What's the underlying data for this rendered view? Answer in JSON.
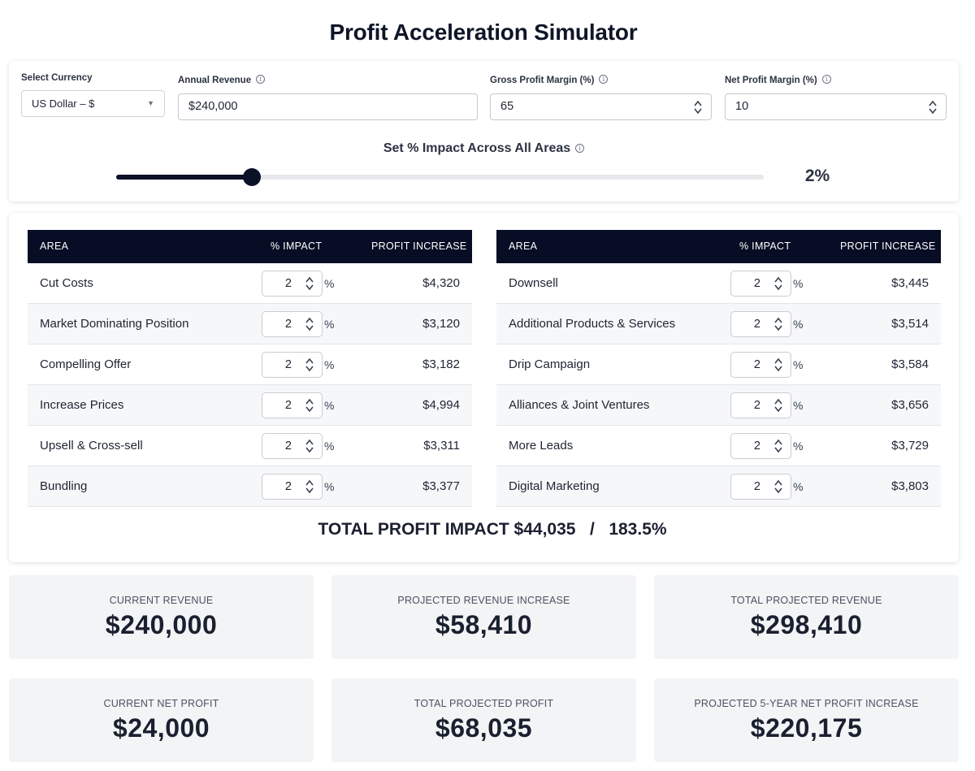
{
  "title": "Profit Acceleration Simulator",
  "settings": {
    "currency": {
      "label": "Select Currency",
      "value": "US Dollar – $"
    },
    "annual_revenue": {
      "label": "Annual Revenue",
      "value": "$240,000"
    },
    "gross_margin": {
      "label": "Gross Profit Margin (%)",
      "value": "65"
    },
    "net_margin": {
      "label": "Net Profit Margin (%)",
      "value": "10"
    },
    "impact": {
      "label": "Set % Impact Across All Areas",
      "value_label": "2%",
      "slider_fraction": 0.21
    }
  },
  "table_headers": {
    "area": "AREA",
    "impact": "% IMPACT",
    "profit": "PROFIT INCREASE"
  },
  "percent_sign": "%",
  "left_rows": [
    {
      "name": "Cut Costs",
      "impact": "2",
      "profit": "$4,320"
    },
    {
      "name": "Market Dominating Position",
      "impact": "2",
      "profit": "$3,120"
    },
    {
      "name": "Compelling Offer",
      "impact": "2",
      "profit": "$3,182"
    },
    {
      "name": "Increase Prices",
      "impact": "2",
      "profit": "$4,994"
    },
    {
      "name": "Upsell & Cross-sell",
      "impact": "2",
      "profit": "$3,311"
    },
    {
      "name": "Bundling",
      "impact": "2",
      "profit": "$3,377"
    }
  ],
  "right_rows": [
    {
      "name": "Downsell",
      "impact": "2",
      "profit": "$3,445"
    },
    {
      "name": "Additional Products & Services",
      "impact": "2",
      "profit": "$3,514"
    },
    {
      "name": "Drip Campaign",
      "impact": "2",
      "profit": "$3,584"
    },
    {
      "name": "Alliances & Joint Ventures",
      "impact": "2",
      "profit": "$3,656"
    },
    {
      "name": "More Leads",
      "impact": "2",
      "profit": "$3,729"
    },
    {
      "name": "Digital Marketing",
      "impact": "2",
      "profit": "$3,803"
    }
  ],
  "total": {
    "label": "TOTAL PROFIT IMPACT",
    "amount": "$44,035",
    "separator": "/",
    "percent": "183.5%"
  },
  "stats": [
    {
      "label": "CURRENT REVENUE",
      "value": "$240,000"
    },
    {
      "label": "PROJECTED REVENUE INCREASE",
      "value": "$58,410"
    },
    {
      "label": "TOTAL PROJECTED REVENUE",
      "value": "$298,410"
    },
    {
      "label": "CURRENT NET PROFIT",
      "value": "$24,000"
    },
    {
      "label": "TOTAL PROJECTED PROFIT",
      "value": "$68,035"
    },
    {
      "label": "PROJECTED 5-YEAR NET PROFIT INCREASE",
      "value": "$220,175"
    }
  ]
}
